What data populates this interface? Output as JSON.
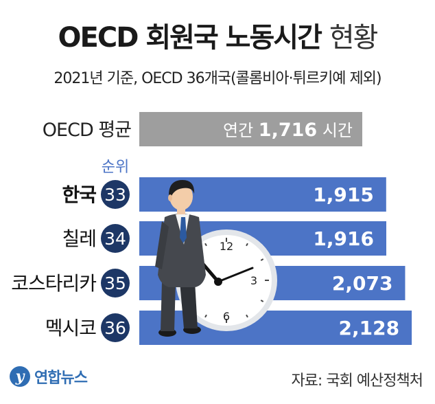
{
  "title": "OECD 회원국 노동시간",
  "title_suffix": "현황",
  "subtitle": "2021년 기준, OECD 36개국(콜롬비아·튀르키예 제외)",
  "rank_header": "순위",
  "logo_text": "연합뉴스",
  "source": "자료: 국회 예산정책처",
  "colors": {
    "avg_bar": "#9e9e9e",
    "country_bar": "#4c74c6",
    "rank_circle": "#1d3766",
    "rank_header": "#4c74c6"
  },
  "chart_data": {
    "type": "bar",
    "orientation": "horizontal",
    "average": {
      "label": "OECD 평균",
      "prefix": "연간",
      "value": 1716,
      "display": "1,716",
      "suffix": "시간"
    },
    "items": [
      {
        "label": "한국",
        "rank": 33,
        "value": 1915,
        "display": "1,915",
        "highlight": true
      },
      {
        "label": "칠레",
        "rank": 34,
        "value": 1916,
        "display": "1,916",
        "highlight": false
      },
      {
        "label": "코스타리카",
        "rank": 35,
        "value": 2073,
        "display": "2,073",
        "highlight": false
      },
      {
        "label": "멕시코",
        "rank": 36,
        "value": 2128,
        "display": "2,128",
        "highlight": false
      }
    ],
    "clock_numbers": [
      "12",
      "3",
      "6"
    ]
  }
}
